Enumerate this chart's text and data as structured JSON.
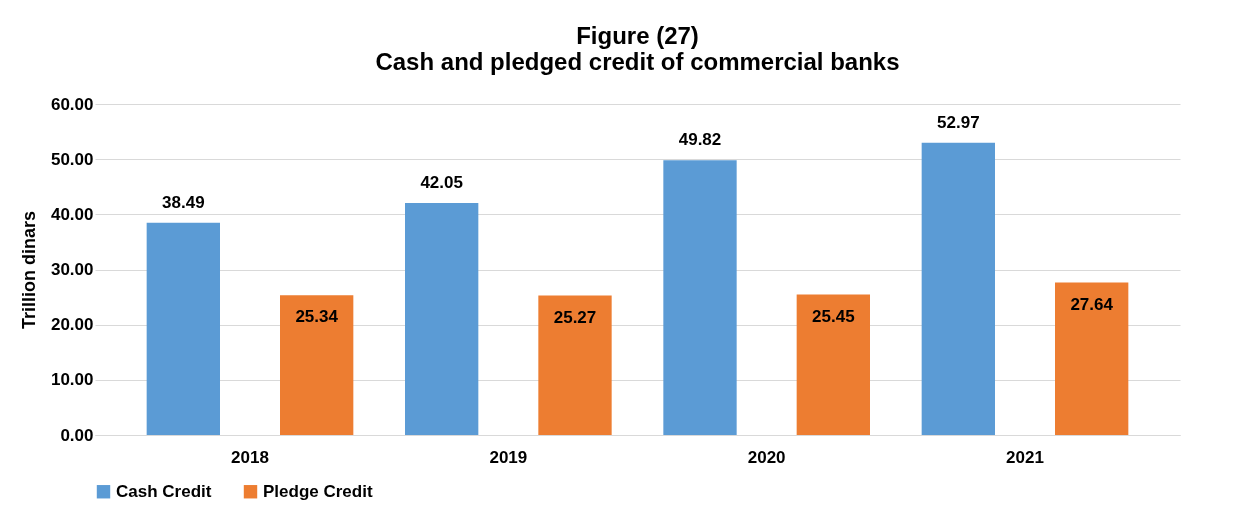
{
  "chart_data": {
    "type": "bar",
    "title": "Figure (27)\nCash and pledged credit of commercial banks",
    "ylabel": "Trillion dinars",
    "categories": [
      "2018",
      "2019",
      "2020",
      "2021"
    ],
    "series": [
      {
        "name": "Cash Credit",
        "color": "#5b9bd5",
        "values": [
          38.49,
          42.05,
          49.82,
          52.97
        ]
      },
      {
        "name": "Pledge Credit",
        "color": "#ed7d31",
        "values": [
          25.34,
          25.27,
          25.45,
          27.64
        ]
      }
    ],
    "ylim": [
      0,
      60
    ],
    "yticks": [
      {
        "value": 0,
        "label": "0.00"
      },
      {
        "value": 10,
        "label": "10.00"
      },
      {
        "value": 20,
        "label": "20.00"
      },
      {
        "value": 30,
        "label": "30.00"
      },
      {
        "value": 40,
        "label": "40.00"
      },
      {
        "value": 50,
        "label": "50.00"
      },
      {
        "value": 60,
        "label": "60.00"
      }
    ],
    "grid": "y",
    "legend": "bottom",
    "data_labels": true
  }
}
